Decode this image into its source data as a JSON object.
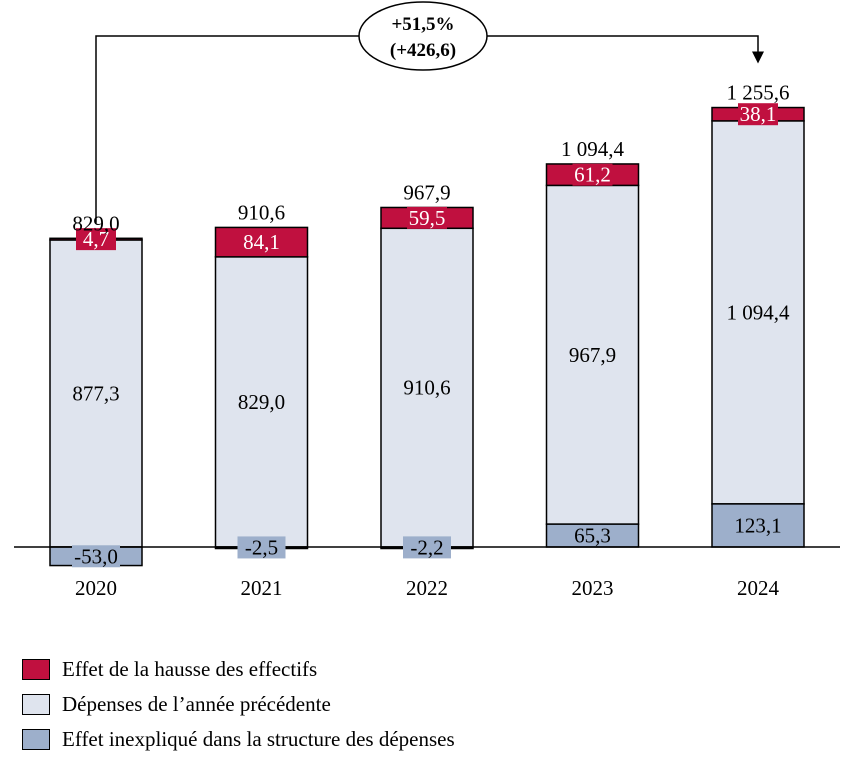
{
  "chart_data": {
    "type": "bar",
    "stacked": true,
    "categories": [
      "2020",
      "2021",
      "2022",
      "2023",
      "2024"
    ],
    "series": [
      {
        "name": "Effet inexpliqué dans la structure des dépenses",
        "key": "unexplained",
        "color": "#9DAFCB",
        "values": [
          -53.0,
          -2.5,
          -2.2,
          65.3,
          123.1
        ],
        "labels": [
          "-53,0",
          "-2,5",
          "-2,2",
          "65,3",
          "123,1"
        ]
      },
      {
        "name": "Dépenses de l’année précédente",
        "key": "previous",
        "color": "#DFE4EE",
        "values": [
          877.3,
          829.0,
          910.6,
          967.9,
          1094.4
        ],
        "labels": [
          "877,3",
          "829,0",
          "910,6",
          "967,9",
          "1 094,4"
        ]
      },
      {
        "name": "Effet de la hausse des effectifs",
        "key": "headcount",
        "color": "#C0103F",
        "values": [
          4.7,
          84.1,
          59.5,
          61.2,
          38.1
        ],
        "labels": [
          "4,7",
          "84,1",
          "59,5",
          "61,2",
          "38,1"
        ]
      }
    ],
    "totals": [
      829.0,
      910.6,
      967.9,
      1094.4,
      1255.6
    ],
    "total_labels": [
      "829,0",
      "910,6",
      "967,9",
      "1 094,4",
      "1 255,6"
    ],
    "annotation": {
      "line1": "+51,5%",
      "line2": "(+426,6)",
      "from": "2020",
      "to": "2024"
    },
    "ylim": [
      -53,
      1300
    ],
    "grid": false,
    "legend_position": "bottom-left"
  }
}
